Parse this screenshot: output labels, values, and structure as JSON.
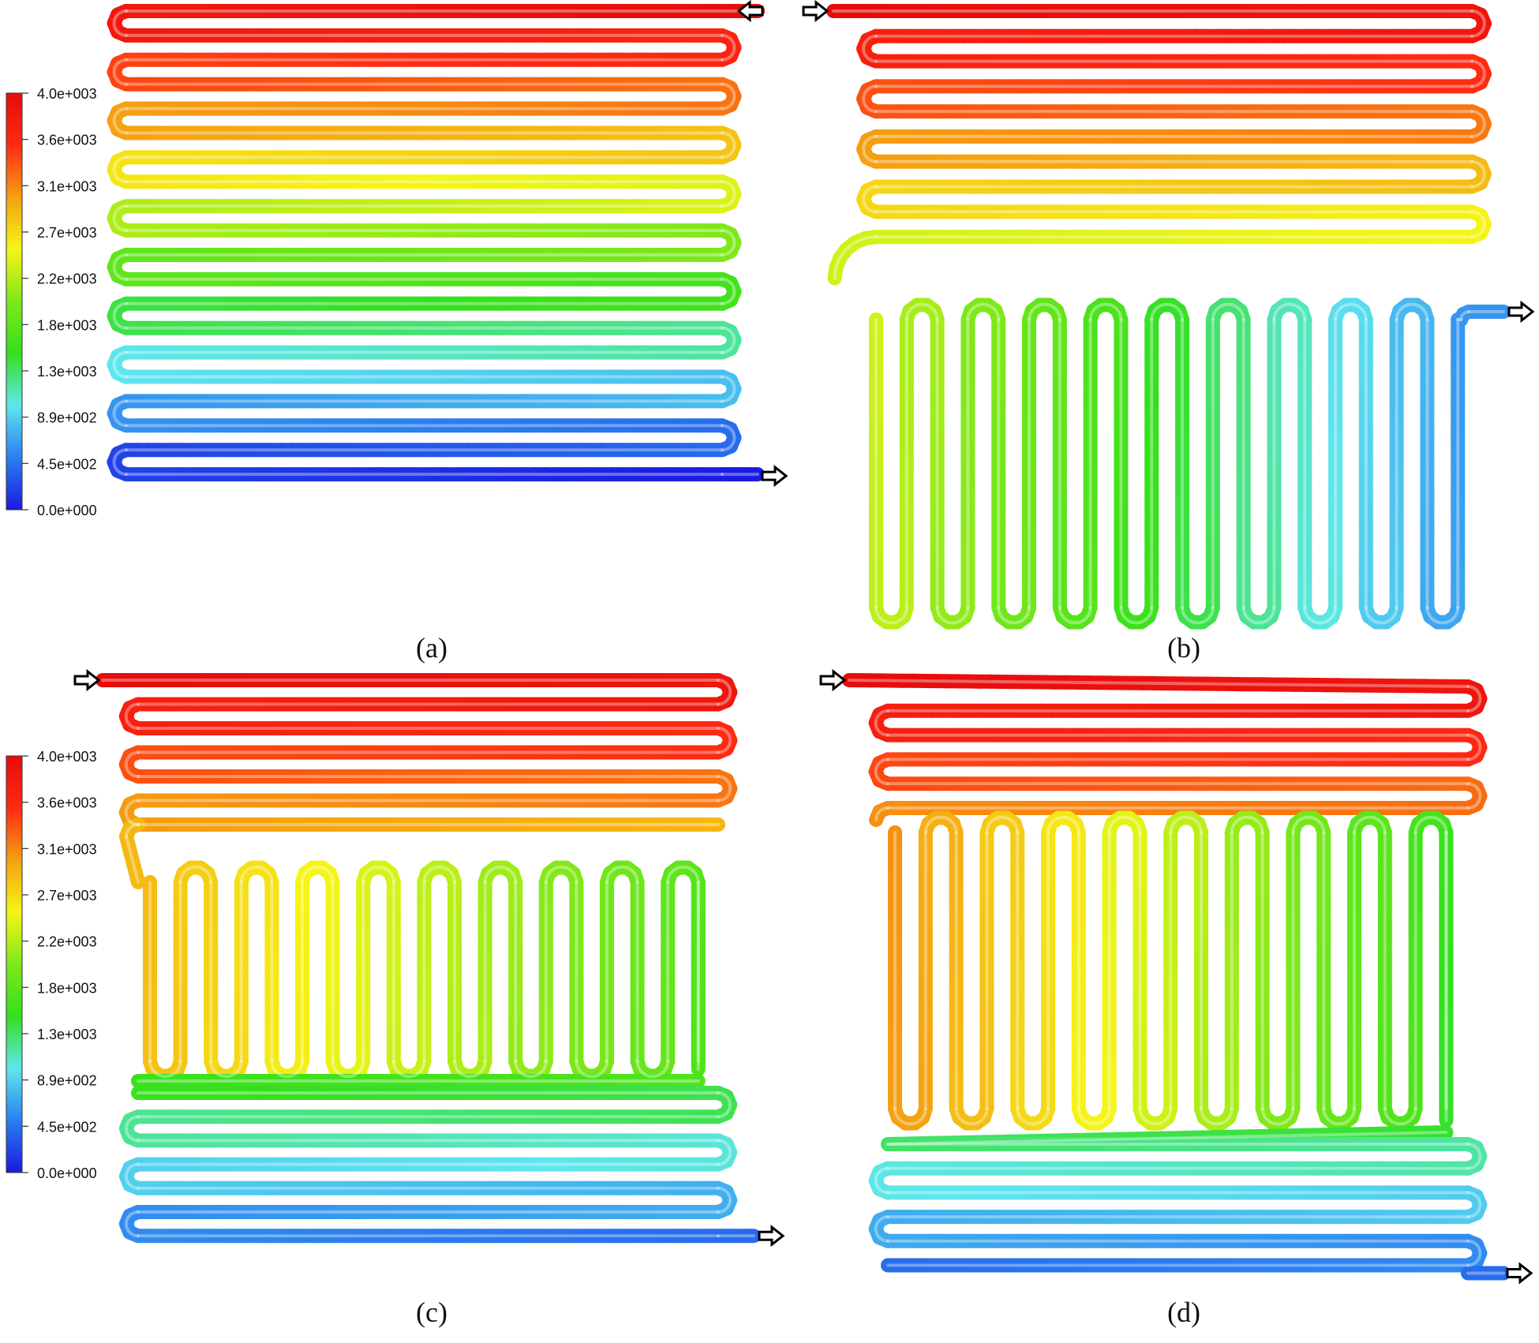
{
  "legend_colors": [
    "#1a1ae0",
    "#2a7ff0",
    "#5ee6ee",
    "#34e01e",
    "#7ee81a",
    "#f5f516",
    "#f5a012",
    "#ff2a12",
    "#e60c0c"
  ],
  "legend_ticks": [
    "4.0e+003",
    "3.6e+003",
    "3.1e+003",
    "2.7e+003",
    "2.2e+003",
    "1.8e+003",
    "1.3e+003",
    "8.9e+002",
    "4.5e+002",
    "0.0e+000"
  ],
  "panels": [
    {
      "caption": "(a)",
      "layout": "serpentine",
      "inlet_pressure": 4000,
      "outlet_pressure": 0
    },
    {
      "caption": "(b)",
      "layout": "serpentine-top-vertical-bottom",
      "inlet_pressure": 4000,
      "outlet_pressure": 0
    },
    {
      "caption": "(c)",
      "layout": "serpentine-vertical-middle",
      "inlet_pressure": 4000,
      "outlet_pressure": 0
    },
    {
      "caption": "(d)",
      "layout": "serpentine-vertical-middle",
      "inlet_pressure": 4000,
      "outlet_pressure": 0
    }
  ]
}
